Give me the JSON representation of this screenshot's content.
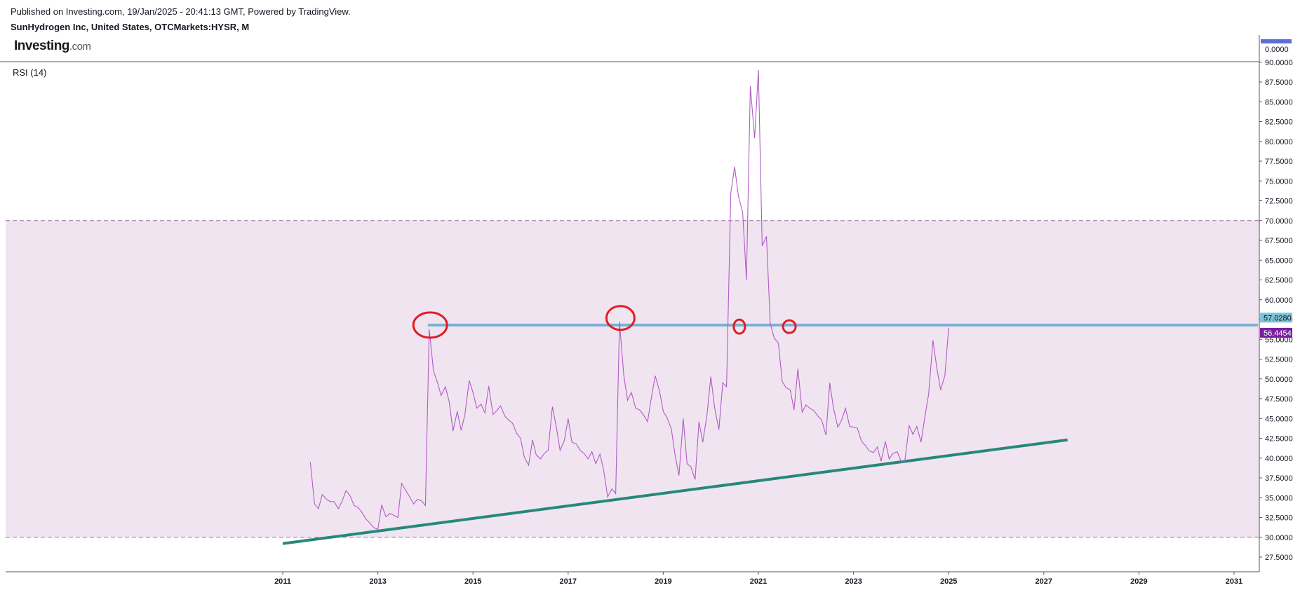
{
  "header": {
    "published": "Published on Investing.com, 19/Jan/2025 - 20:41:13 GMT, Powered by TradingView.",
    "symbol": "SunHydrogen Inc, United States, OTCMarkets:HYSR, M",
    "logo_main": "Investing",
    "logo_suffix": ".com"
  },
  "indicator": {
    "label": "RSI (14)"
  },
  "upper_pane": {
    "tick": "0.0000"
  },
  "badges": [
    {
      "value": "57.0280",
      "bg": "#7dc3d8",
      "fg": "#131722"
    },
    {
      "value": "56.4454",
      "bg": "#7b1fa2",
      "fg": "#ffffff"
    }
  ],
  "colors": {
    "rsi_line": "#b05cc4",
    "band_fill": "#f1e4f1",
    "band_border": "#9b6b9b",
    "resistance": "#7ab0d4",
    "trendline": "#26887a",
    "annotation": "#e31b23"
  },
  "chart_data": {
    "type": "line",
    "title": "RSI (14)",
    "ylim": [
      27.5,
      90
    ],
    "y_ticks": [
      "27.5000",
      "30.0000",
      "32.5000",
      "35.0000",
      "37.5000",
      "40.0000",
      "42.5000",
      "45.0000",
      "47.5000",
      "50.0000",
      "52.5000",
      "55.0000",
      "57.5000",
      "60.0000",
      "62.5000",
      "65.0000",
      "67.5000",
      "70.0000",
      "72.5000",
      "75.0000",
      "77.5000",
      "80.0000",
      "82.5000",
      "85.0000",
      "87.5000",
      "90.0000"
    ],
    "x_ticks": [
      "2011",
      "2013",
      "2015",
      "2017",
      "2019",
      "2021",
      "2023",
      "2025",
      "2027",
      "2029",
      "2031"
    ],
    "xlim": [
      2011,
      2031
    ],
    "bands": {
      "upper": 70,
      "lower": 30
    },
    "series": [
      {
        "x": [
          2011.58,
          2011.67,
          2011.75,
          2011.83,
          2011.92,
          2012.0,
          2012.08,
          2012.17,
          2012.25,
          2012.33,
          2012.42,
          2012.5,
          2012.58,
          2012.67,
          2012.75,
          2012.83,
          2012.92,
          2013.0,
          2013.08,
          2013.17,
          2013.25,
          2013.33,
          2013.42,
          2013.5,
          2013.58,
          2013.67,
          2013.75,
          2013.83,
          2013.92,
          2014.0,
          2014.08,
          2014.17,
          2014.25,
          2014.33,
          2014.42,
          2014.5,
          2014.58,
          2014.67,
          2014.75,
          2014.83,
          2014.92,
          2015.0,
          2015.08,
          2015.17,
          2015.25,
          2015.33,
          2015.42,
          2015.5,
          2015.58,
          2015.67,
          2015.75,
          2015.83,
          2015.92,
          2016.0,
          2016.08,
          2016.17,
          2016.25,
          2016.33,
          2016.42,
          2016.5,
          2016.58,
          2016.67,
          2016.75,
          2016.83,
          2016.92,
          2017.0,
          2017.08,
          2017.17,
          2017.25,
          2017.33,
          2017.42,
          2017.5,
          2017.58,
          2017.67,
          2017.75,
          2017.83,
          2017.92,
          2018.0,
          2018.08,
          2018.17,
          2018.25,
          2018.33,
          2018.42,
          2018.5,
          2018.58,
          2018.67,
          2018.75,
          2018.83,
          2018.92,
          2019.0,
          2019.08,
          2019.17,
          2019.25,
          2019.33,
          2019.42,
          2019.5,
          2019.58,
          2019.67,
          2019.75,
          2019.83,
          2019.92,
          2020.0,
          2020.08,
          2020.17,
          2020.25,
          2020.33,
          2020.42,
          2020.5,
          2020.58,
          2020.67,
          2020.75,
          2020.83,
          2020.92,
          2021.0,
          2021.08,
          2021.17,
          2021.25,
          2021.33,
          2021.42,
          2021.5,
          2021.58,
          2021.67,
          2021.75,
          2021.83,
          2021.92,
          2022.0,
          2022.08,
          2022.17,
          2022.25,
          2022.33,
          2022.42,
          2022.5,
          2022.58,
          2022.67,
          2022.75,
          2022.83,
          2022.92,
          2023.0,
          2023.08,
          2023.17,
          2023.25,
          2023.33,
          2023.42,
          2023.5,
          2023.58,
          2023.67,
          2023.75,
          2023.83,
          2023.92,
          2024.0,
          2024.08,
          2024.17,
          2024.25,
          2024.33,
          2024.42,
          2024.5,
          2024.58,
          2024.67,
          2024.75,
          2024.83,
          2024.92,
          2025.0
        ],
        "values": [
          39.5,
          34.2,
          33.6,
          35.4,
          34.8,
          34.5,
          34.5,
          33.6,
          34.6,
          35.9,
          35.2,
          34.0,
          33.8,
          33.1,
          32.3,
          31.8,
          31.2,
          31.0,
          34.1,
          32.6,
          33.0,
          32.8,
          32.5,
          36.8,
          36.0,
          35.1,
          34.2,
          34.8,
          34.6,
          34.0,
          56.3,
          51.0,
          49.6,
          47.9,
          49.0,
          47.1,
          43.4,
          45.9,
          43.5,
          45.5,
          49.8,
          48.3,
          46.3,
          46.8,
          45.7,
          49.1,
          45.5,
          46.0,
          46.6,
          45.3,
          44.8,
          44.4,
          43.1,
          42.5,
          40.1,
          39.1,
          42.3,
          40.4,
          39.9,
          40.6,
          41.0,
          46.5,
          44.0,
          41.0,
          42.2,
          45.0,
          42.0,
          41.8,
          41.0,
          40.6,
          39.9,
          40.8,
          39.3,
          40.5,
          38.4,
          35.1,
          36.1,
          35.5,
          57.2,
          50.5,
          47.3,
          48.3,
          46.3,
          46.1,
          45.5,
          44.6,
          47.6,
          50.4,
          48.5,
          45.9,
          45.1,
          43.7,
          40.3,
          37.8,
          45.0,
          39.3,
          38.9,
          37.3,
          44.6,
          42.0,
          45.5,
          50.3,
          46.4,
          43.6,
          49.5,
          49.0,
          73.5,
          76.8,
          73.1,
          71.0,
          62.5,
          87.0,
          80.4,
          89.0,
          66.8,
          68.0,
          57.0,
          55.2,
          54.5,
          49.7,
          48.9,
          48.6,
          46.1,
          51.3,
          45.8,
          46.7,
          46.3,
          46.0,
          45.3,
          44.8,
          42.9,
          49.5,
          46.3,
          43.9,
          44.8,
          46.3,
          44.0,
          43.9,
          43.8,
          42.1,
          41.6,
          40.9,
          40.7,
          41.4,
          39.6,
          42.1,
          39.9,
          40.6,
          40.8,
          39.6,
          39.7,
          44.1,
          43.0,
          44.0,
          42.0,
          45.2,
          48.1,
          54.9,
          51.4,
          48.6,
          50.4,
          56.45
        ]
      }
    ],
    "annotations": [
      {
        "type": "horizontal_line",
        "y": 56.8,
        "x_from": 2014.05,
        "x_to": 2031.5
      },
      {
        "type": "trendline",
        "x1": 2011.0,
        "y1": 29.2,
        "x2": 2027.5,
        "y2": 42.3
      },
      {
        "type": "circle",
        "x": 2014.1,
        "y": 56.8
      },
      {
        "type": "circle",
        "x": 2018.1,
        "y": 57.7
      },
      {
        "type": "circle",
        "x": 2020.6,
        "y": 56.6
      },
      {
        "type": "circle",
        "x": 2021.65,
        "y": 56.6
      }
    ],
    "last_values": [
      57.028,
      56.4454
    ]
  }
}
